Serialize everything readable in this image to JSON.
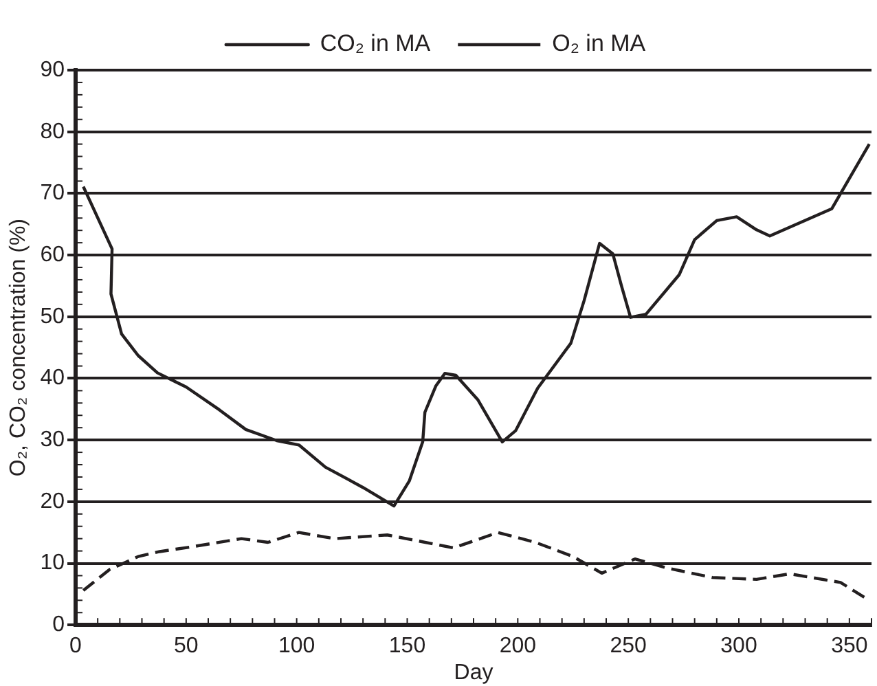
{
  "chart_data": {
    "type": "line",
    "xlabel": "Day",
    "ylabel": "O₂, CO₂ concentration (%)",
    "xlim": [
      0,
      360
    ],
    "xticks": [
      0,
      50,
      100,
      150,
      200,
      250,
      300,
      350
    ],
    "ylim": [
      0,
      90
    ],
    "yticks": [
      0,
      10,
      20,
      30,
      40,
      50,
      60,
      70,
      80,
      90
    ],
    "grid": "y",
    "legend": "top",
    "marker": "none",
    "series": [
      {
        "name": "CO₂ in MA",
        "color": "#231f20",
        "line_style": "solid",
        "x": [
          3.5,
          16.5,
          16,
          20.8,
          28.3,
          37,
          50,
          65,
          77,
          91,
          101,
          113,
          130,
          144,
          151,
          157,
          158,
          163,
          167,
          172,
          182,
          193,
          199,
          209,
          224,
          230,
          237,
          243,
          247,
          251,
          258,
          273,
          280,
          290,
          299,
          308,
          314,
          342,
          359
        ],
        "values": [
          71.1,
          61,
          53.7,
          47.2,
          43.7,
          40.9,
          38.6,
          34.9,
          31.7,
          29.9,
          29.2,
          25.6,
          22.3,
          19.3,
          23.4,
          29.7,
          34.5,
          38.8,
          40.8,
          40.5,
          36.5,
          29.7,
          31.5,
          38.4,
          45.7,
          52.6,
          61.9,
          60.2,
          54.9,
          49.9,
          50.4,
          56.8,
          62.5,
          65.6,
          66.2,
          64.1,
          63.1,
          67.5,
          78
        ]
      },
      {
        "name": "O₂ in MA",
        "color": "#231f20",
        "line_style": "dashed",
        "x": [
          3.5,
          15.4,
          28.3,
          38,
          53,
          75,
          87,
          101,
          117,
          141,
          171,
          191,
          208,
          225,
          238,
          253,
          268,
          288,
          308,
          323,
          346,
          358
        ],
        "values": [
          5.6,
          9,
          11.1,
          11.9,
          12.7,
          14,
          13.4,
          15,
          14,
          14.6,
          12.5,
          15,
          13.4,
          11.1,
          8.4,
          10.7,
          9.2,
          7.7,
          7.4,
          8.3,
          6.9,
          4.2
        ]
      }
    ]
  }
}
